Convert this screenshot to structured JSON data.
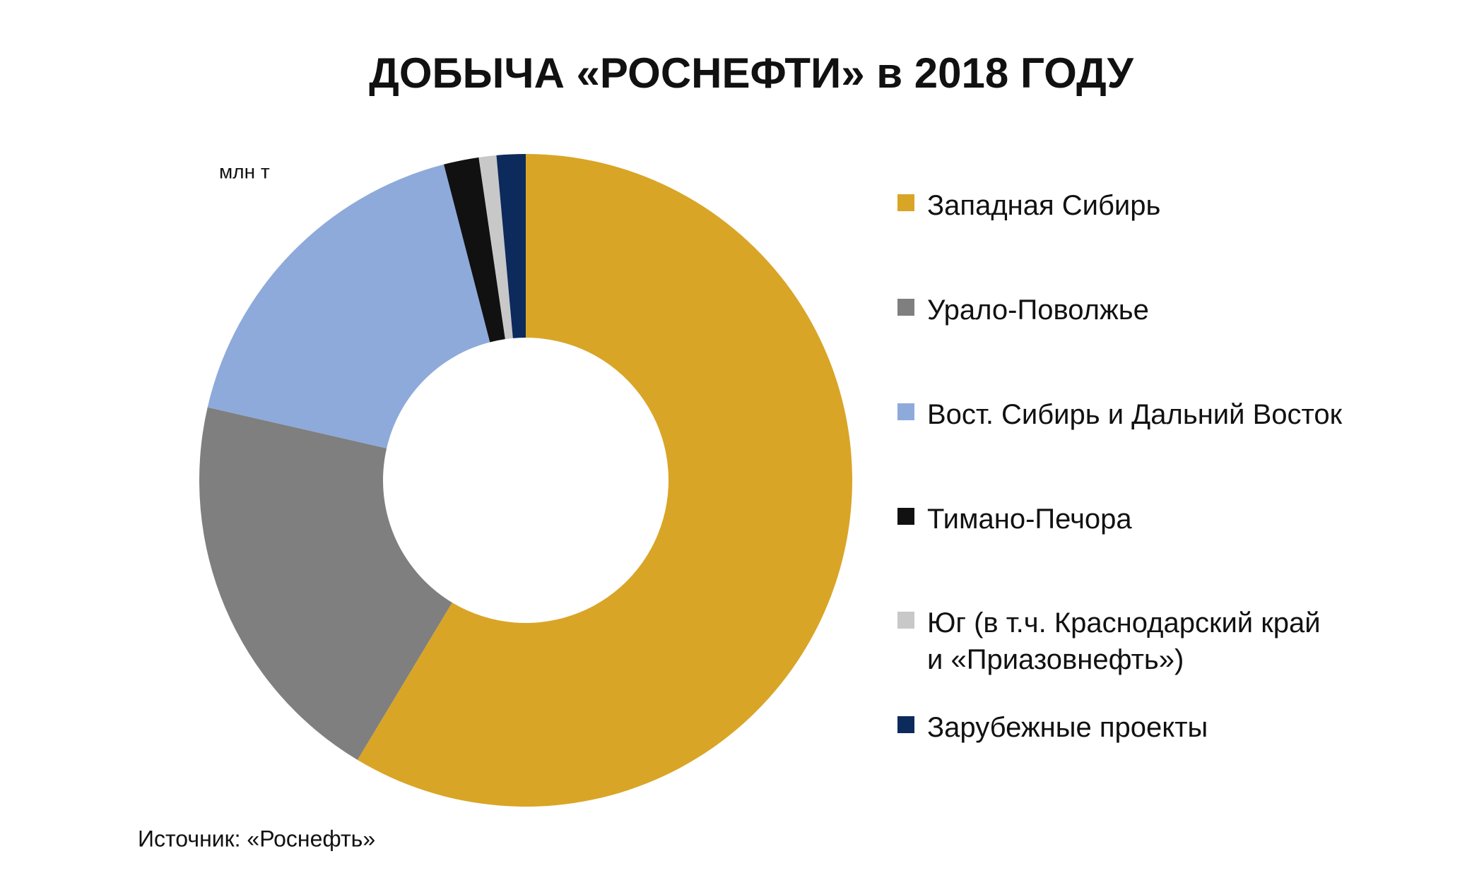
{
  "chart_data": {
    "type": "donut",
    "title": "ДОБЫЧА «РОСНЕФТИ» в 2018 ГОДУ",
    "unit_label": "млн т",
    "source": "Источник: «Роснефть»",
    "series": [
      {
        "name": "Западная Сибирь",
        "color": "#d9a526",
        "values": [
          135
        ]
      },
      {
        "name": "Урало-Поволжье",
        "color": "#7f7f7f",
        "values": [
          46
        ]
      },
      {
        "name": "Вост. Сибирь и Дальний Восток",
        "color": "#8eaadb",
        "values": [
          40
        ]
      },
      {
        "name": "Тимано-Печора",
        "color": "#111111",
        "values": [
          4
        ]
      },
      {
        "name": "Юг (в т.ч. Краснодарский край\nи «Приазовнефть»)",
        "color": "#c8c8c8",
        "values": [
          2
        ]
      },
      {
        "name": "Зарубежные проекты",
        "color": "#0d2a5c",
        "values": [
          3.3
        ]
      }
    ]
  }
}
